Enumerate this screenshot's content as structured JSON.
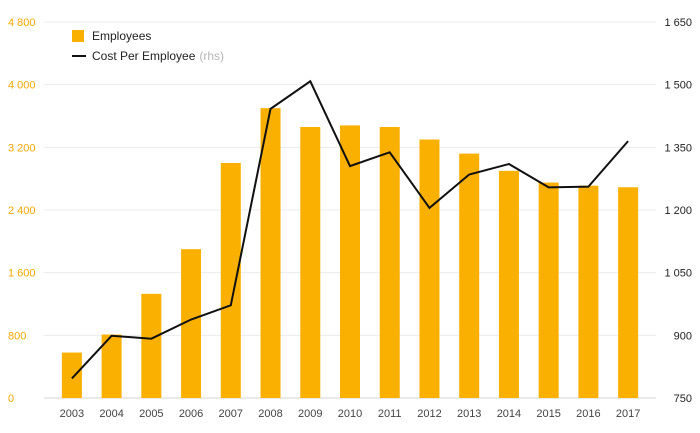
{
  "chart_data": {
    "type": "bar",
    "categories": [
      "2003",
      "2004",
      "2005",
      "2006",
      "2007",
      "2008",
      "2009",
      "2010",
      "2011",
      "2012",
      "2013",
      "2014",
      "2015",
      "2016",
      "2017"
    ],
    "series": [
      {
        "name": "Employees",
        "axis": "left",
        "kind": "bar",
        "color": "#f9b000",
        "values": [
          580,
          810,
          1330,
          1900,
          3000,
          3700,
          3460,
          3480,
          3460,
          3300,
          3120,
          2900,
          2750,
          2710,
          2690
        ]
      },
      {
        "name": "Cost Per Employee",
        "axis": "right",
        "kind": "line",
        "color": "#111111",
        "values": [
          797,
          899,
          892,
          938,
          972,
          1442,
          1508,
          1305,
          1338,
          1205,
          1285,
          1310,
          1254,
          1256,
          1365
        ]
      }
    ],
    "left_axis": {
      "ticks": [
        "0",
        "800",
        "1 600",
        "2 400",
        "3 200",
        "4 000",
        "4 800"
      ],
      "min": 0,
      "max": 4800,
      "color": "#f5a800"
    },
    "right_axis": {
      "ticks": [
        "750",
        "900",
        "1 050",
        "1 200",
        "1 350",
        "1 500",
        "1 650"
      ],
      "min": 750,
      "max": 1650,
      "color": "#222222"
    },
    "legend": {
      "items": [
        {
          "label": "Employees",
          "suffix": ""
        },
        {
          "label": "Cost Per Employee",
          "suffix": "(rhs)"
        }
      ],
      "placement": "top-left"
    },
    "grid": true
  }
}
